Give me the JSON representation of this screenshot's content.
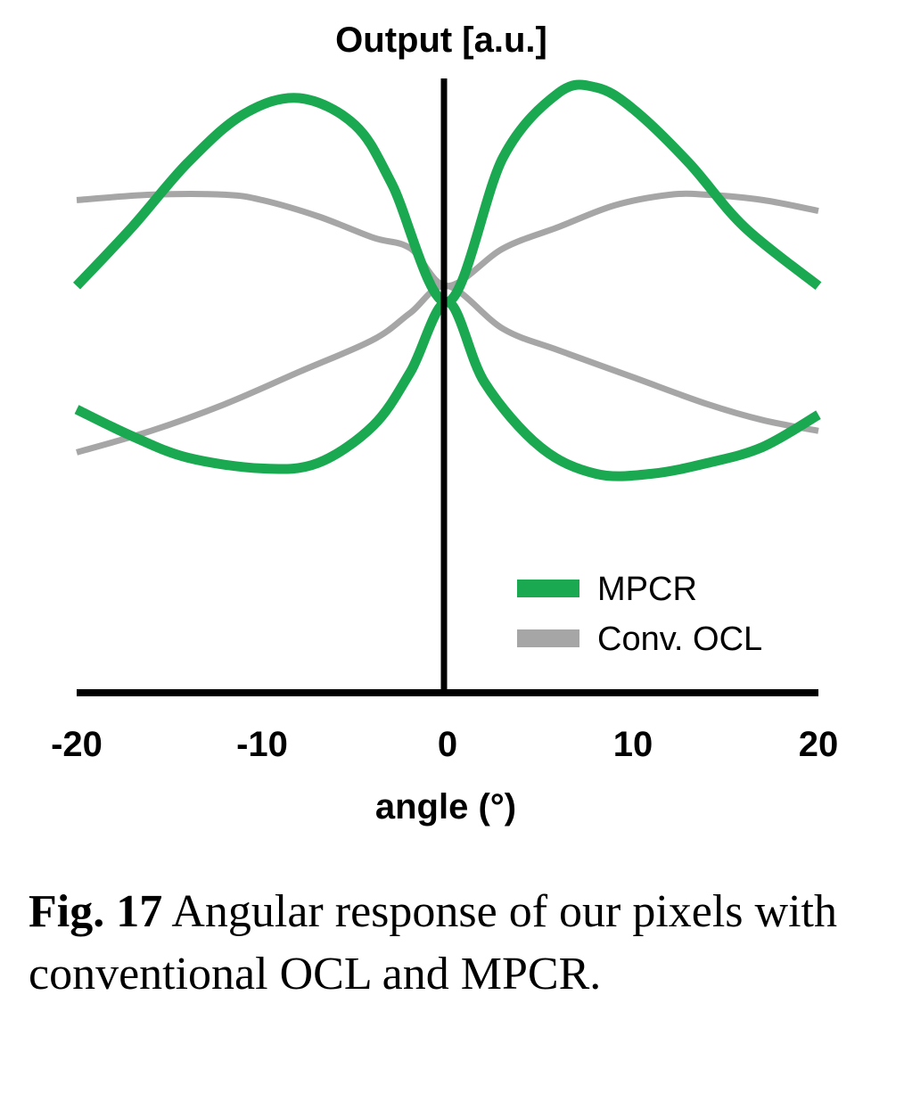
{
  "chart_data": {
    "type": "line",
    "title": "",
    "ylabel": "Output [a.u.]",
    "xlabel": "angle (°)",
    "xlim": [
      -20,
      20
    ],
    "ylim": [
      0,
      1
    ],
    "xticks": [
      -20,
      -10,
      0,
      10,
      20
    ],
    "yticks": [],
    "grid": false,
    "legend_position": "bottom-right",
    "series": [
      {
        "name": "MPCR",
        "color": "#1aa850",
        "segments": [
          {
            "x": [
              -20,
              -17,
              -14,
              -11,
              -8,
              -5,
              -3,
              0,
              3,
              6,
              8,
              10,
              13,
              16,
              20
            ],
            "y": [
              0.63,
              0.74,
              0.86,
              0.95,
              0.98,
              0.93,
              0.82,
              0.6,
              0.87,
              0.99,
              1.0,
              0.96,
              0.86,
              0.74,
              0.63
            ]
          },
          {
            "x": [
              -20,
              -17,
              -14,
              -10,
              -7,
              -4,
              -2,
              0,
              2,
              5,
              8,
              11,
              14,
              17,
              20
            ],
            "y": [
              0.4,
              0.35,
              0.31,
              0.29,
              0.3,
              0.37,
              0.47,
              0.6,
              0.45,
              0.33,
              0.28,
              0.28,
              0.3,
              0.33,
              0.39
            ]
          }
        ]
      },
      {
        "name": "Conv. OCL",
        "color": "#a6a6a6",
        "segments": [
          {
            "x": [
              -20,
              -16,
              -12,
              -10,
              -7,
              -4,
              -2,
              0,
              3,
              6,
              9,
              12,
              14,
              17,
              20
            ],
            "y": [
              0.79,
              0.8,
              0.8,
              0.79,
              0.76,
              0.72,
              0.7,
              0.63,
              0.7,
              0.74,
              0.78,
              0.8,
              0.8,
              0.79,
              0.77
            ]
          },
          {
            "x": [
              -20,
              -16,
              -12,
              -8,
              -4,
              -2,
              0,
              3,
              6,
              10,
              14,
              17,
              20
            ],
            "y": [
              0.32,
              0.36,
              0.41,
              0.47,
              0.53,
              0.58,
              0.63,
              0.55,
              0.51,
              0.46,
              0.41,
              0.38,
              0.36
            ]
          }
        ]
      }
    ]
  },
  "caption": {
    "label": "Fig. 17",
    "text": " Angular response of our pixels with conventional OCL and MPCR."
  }
}
